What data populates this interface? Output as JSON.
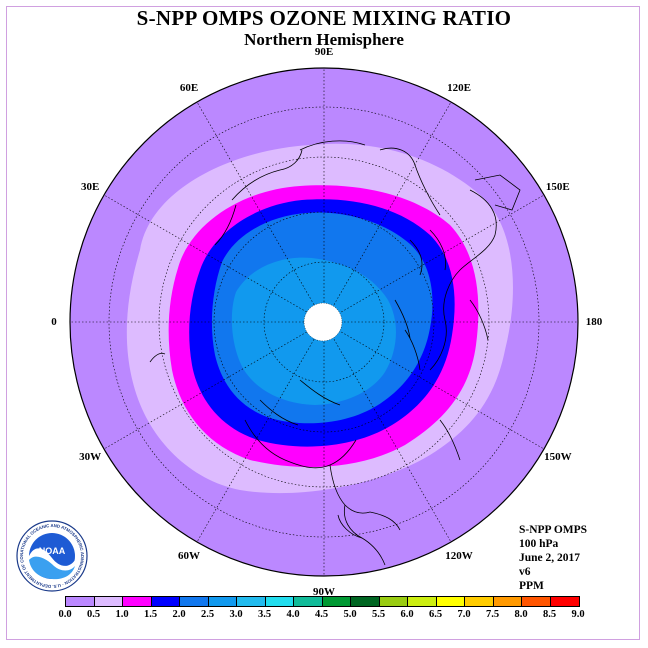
{
  "header": {
    "title": "S-NPP OMPS OZONE MIXING RATIO",
    "subtitle": "Northern Hemisphere"
  },
  "longitude_labels": [
    {
      "text": "90E",
      "lon": 90
    },
    {
      "text": "60E",
      "lon": 60
    },
    {
      "text": "30E",
      "lon": 30
    },
    {
      "text": "0",
      "lon": 0
    },
    {
      "text": "30W",
      "lon": -30
    },
    {
      "text": "60W",
      "lon": -60
    },
    {
      "text": "90W",
      "lon": -90
    },
    {
      "text": "120W",
      "lon": -120
    },
    {
      "text": "150W",
      "lon": -150
    },
    {
      "text": "180",
      "lon": 180
    },
    {
      "text": "150E",
      "lon": 150
    },
    {
      "text": "120E",
      "lon": 120
    }
  ],
  "info": {
    "instrument": "S-NPP OMPS",
    "level": "100 hPa",
    "date": "June 2, 2017",
    "version": "v6",
    "units": "PPM"
  },
  "logo": {
    "text": "NOAA",
    "ring_text": "NATIONAL OCEANIC AND ATMOSPHERIC ADMINISTRATION · U.S. DEPARTMENT OF COMMERCE",
    "icon": "noaa-logo-icon"
  },
  "colorbar": {
    "ticks": [
      "0.0",
      "0.5",
      "1.0",
      "1.5",
      "2.0",
      "2.5",
      "3.0",
      "3.5",
      "4.0",
      "4.5",
      "5.0",
      "5.5",
      "6.0",
      "6.5",
      "7.0",
      "7.5",
      "8.0",
      "8.5",
      "9.0"
    ],
    "colors": [
      "#bb88ff",
      "#ddbbff",
      "#ff00ff",
      "#0000ff",
      "#1177ee",
      "#1199ee",
      "#22bbee",
      "#22ddee",
      "#11bb99",
      "#009933",
      "#006622",
      "#99cc11",
      "#ccee11",
      "#ffff00",
      "#ffcc00",
      "#ff9900",
      "#ff5500",
      "#ff0000",
      "#996644"
    ]
  },
  "map": {
    "projection": "north polar stereographic",
    "field_bands_ppm": [
      {
        "level": "0.0-0.5",
        "color": "#bb88ff"
      },
      {
        "level": "0.5-1.0",
        "color": "#ddbbff"
      },
      {
        "level": "1.0-1.5",
        "color": "#ff00ff"
      },
      {
        "level": "1.5-2.0",
        "color": "#0000ff"
      },
      {
        "level": "2.0-2.5",
        "color": "#1177ee"
      },
      {
        "level": "2.5-3.0",
        "color": "#1199ee"
      }
    ],
    "pole_no_data_color": "#ffffff"
  }
}
